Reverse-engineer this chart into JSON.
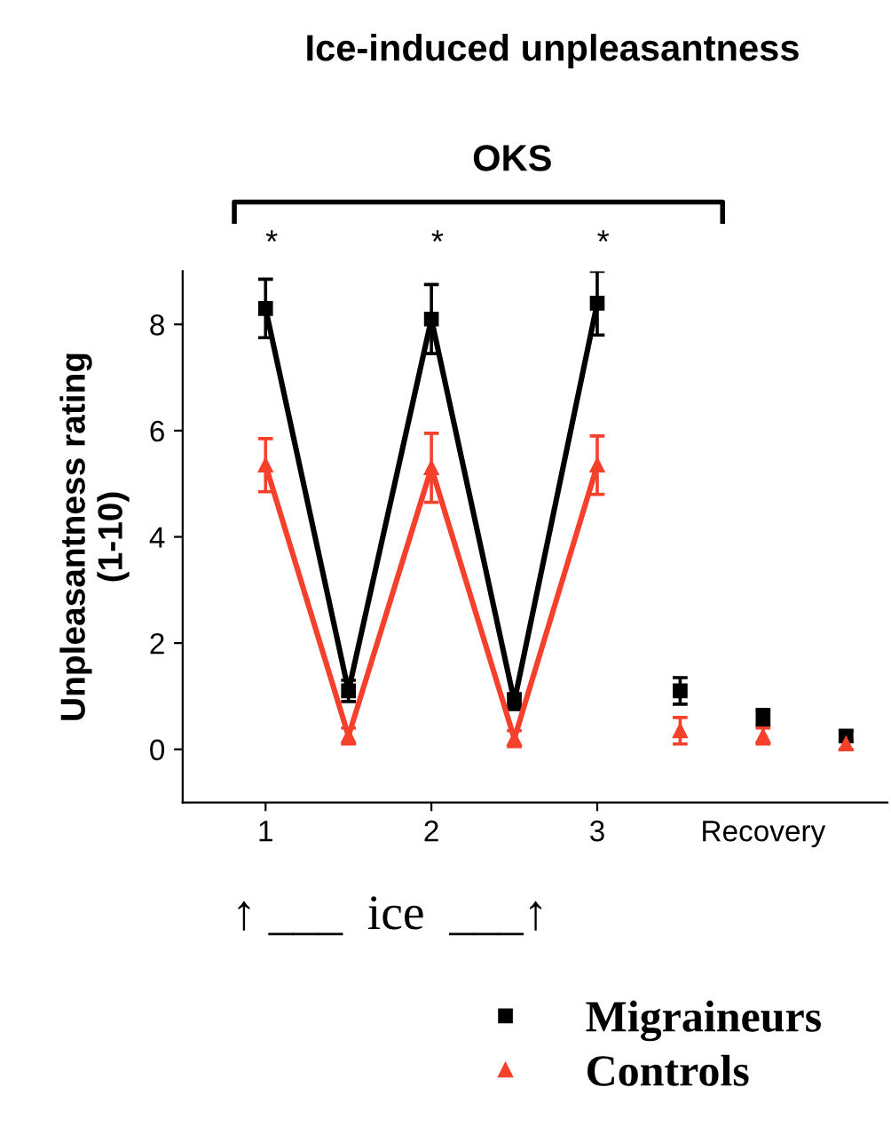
{
  "chart_data": {
    "type": "line",
    "title": "Ice-induced unpleasantness",
    "ylabel": "Unpleasantness rating\n(1-10)",
    "annotations": [
      "OKS",
      "↑ ___  ice  ___↑",
      "*",
      "*",
      "*"
    ],
    "xlim": [
      0.5,
      4.75
    ],
    "xticks": [
      1,
      2,
      3,
      {
        "value": 4,
        "label": "Recovery"
      }
    ],
    "ylim": [
      -1,
      9
    ],
    "yticks": [
      0,
      2,
      4,
      6,
      8
    ],
    "grid": false,
    "legend": "bottom",
    "line_style": "solid",
    "series": [
      {
        "name": "Migraineurs",
        "marker": "square",
        "color": "#000000",
        "x": [
          1,
          1.5,
          2,
          2.5,
          3
        ],
        "values": [
          8.3,
          1.1,
          8.1,
          0.9,
          8.4
        ],
        "errors": [
          0.55,
          0.2,
          0.65,
          0.15,
          0.6
        ]
      },
      {
        "name": "Controls",
        "marker": "triangle",
        "color": "#f5402c",
        "x": [
          1,
          1.5,
          2,
          2.5,
          3
        ],
        "values": [
          5.35,
          0.25,
          5.3,
          0.2,
          5.35
        ],
        "errors": [
          0.5,
          0.15,
          0.65,
          0.15,
          0.55
        ]
      },
      {
        "type": "scatter",
        "marker": "square",
        "color": "#000000",
        "x": [
          3.5,
          4,
          4.5
        ],
        "values": [
          1.1,
          0.6,
          0.25
        ],
        "errors": [
          0.25,
          0.15,
          0.1
        ]
      },
      {
        "type": "scatter",
        "marker": "triangle",
        "color": "#f5402c",
        "x": [
          3.5,
          4,
          4.5
        ],
        "values": [
          0.35,
          0.25,
          0.1
        ],
        "errors": [
          0.25,
          0.15,
          0.1
        ]
      }
    ]
  }
}
